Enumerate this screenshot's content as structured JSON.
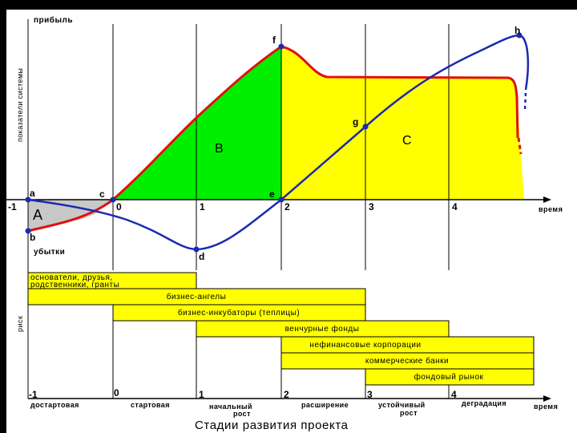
{
  "axes": {
    "y_top": "прибыль",
    "y_side": "показатели системы",
    "y_bottom": "убытки",
    "x_end": "время",
    "risk": "риск"
  },
  "upper_ticks": [
    "-1",
    "0",
    "1",
    "2",
    "3",
    "4"
  ],
  "points": {
    "a": "a",
    "b": "b",
    "c": "c",
    "d": "d",
    "e": "e",
    "f": "f",
    "g": "g",
    "h": "h"
  },
  "areas": {
    "A": "A",
    "B": "B",
    "C": "C"
  },
  "bars": [
    {
      "label": "основатели, друзья, родственники, гранты",
      "lines": [
        "основатели, друзья,",
        "родственники, гранты"
      ]
    },
    {
      "label": "бизнес-ангелы"
    },
    {
      "label": "бизнес-инкубаторы (теплицы)"
    },
    {
      "label": "венчурные фонды"
    },
    {
      "label": "нефинансовые корпорации"
    },
    {
      "label": "коммерческие банки"
    },
    {
      "label": "фондовый рынок"
    }
  ],
  "lower_ticks": [
    "-1",
    "0",
    "1",
    "2",
    "3",
    "4"
  ],
  "stages": [
    "достартовая",
    "стартовая",
    "начальный рост",
    "расширение",
    "устойчивый рост",
    "деградация"
  ],
  "stage_lines": [
    [
      "достартовая"
    ],
    [
      "стартовая"
    ],
    [
      "начальный",
      "рост"
    ],
    [
      "расширение"
    ],
    [
      "устойчивый",
      "рост"
    ],
    [
      "деградация"
    ]
  ],
  "title": "Стадии развития проекта",
  "colors": {
    "profit_curve": "#e01010",
    "system_curve": "#1a2ab0",
    "area_A": "#c8c8c8",
    "area_B": "#00ee00",
    "area_C": "#ffff00",
    "bars": "#ffff00"
  }
}
